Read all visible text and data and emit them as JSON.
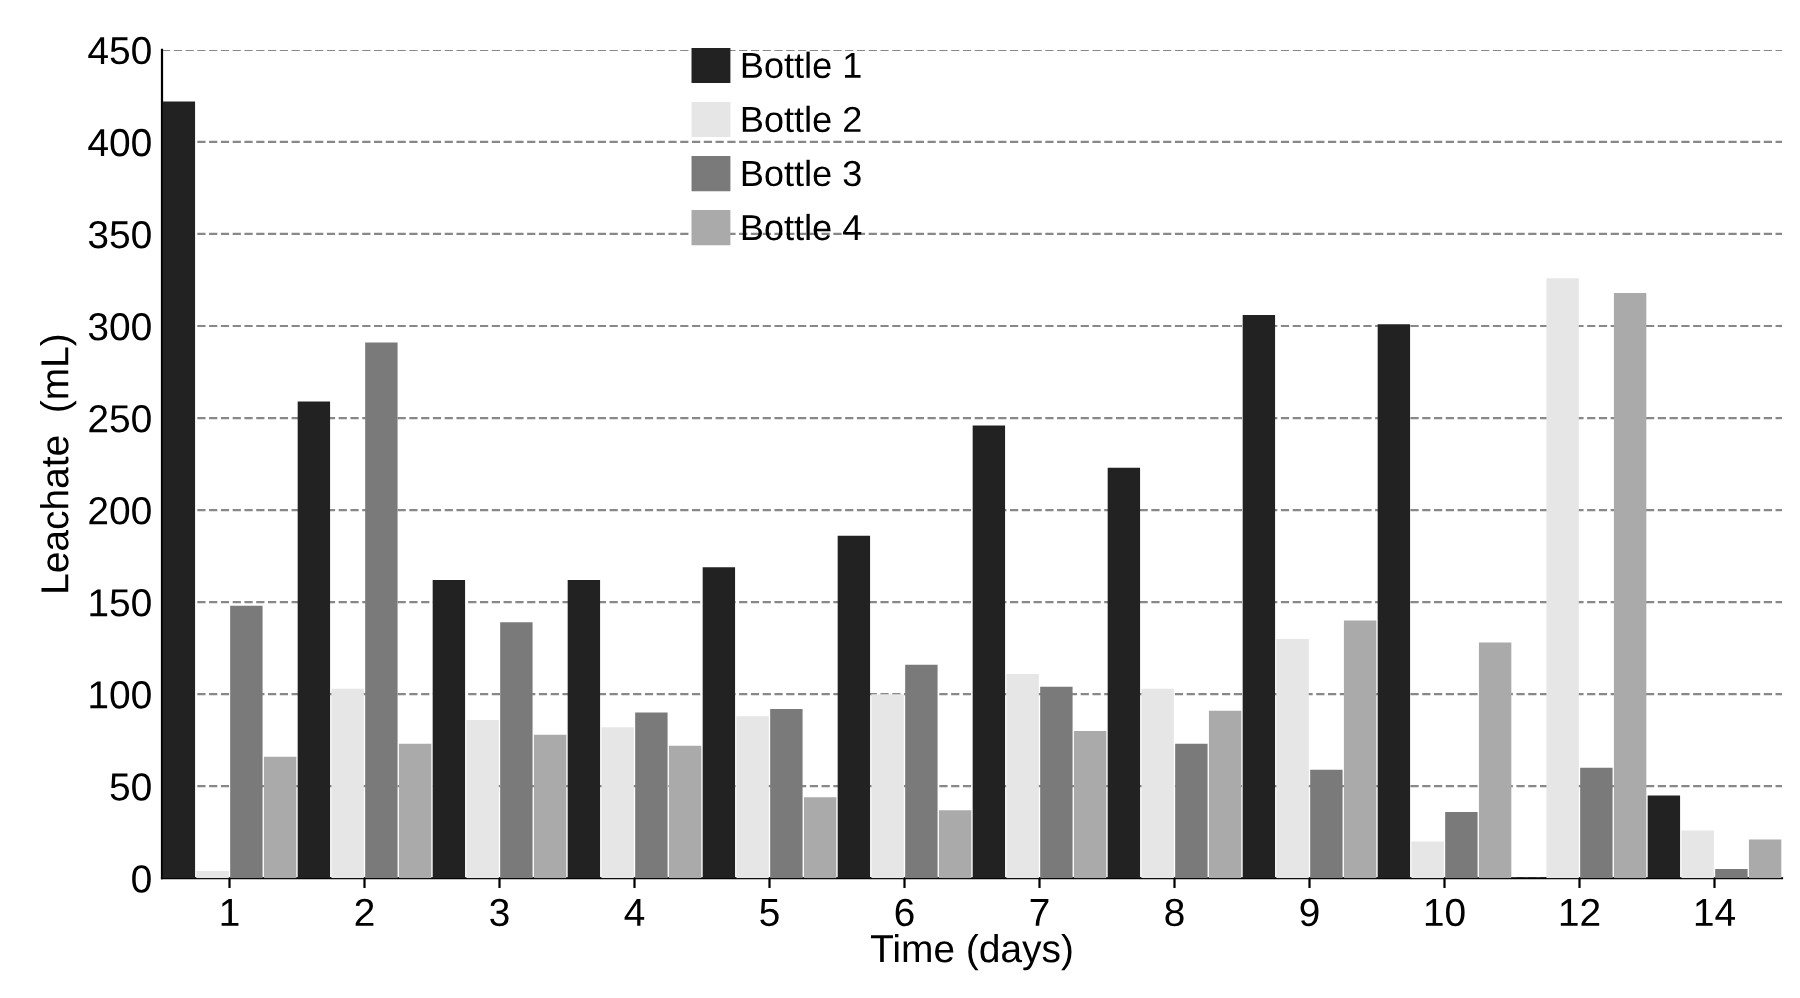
{
  "chart_data": {
    "type": "bar",
    "xlabel": "Time (days)",
    "ylabel": "Leachate  (mL)",
    "categories": [
      "1",
      "2",
      "3",
      "4",
      "5",
      "6",
      "7",
      "8",
      "9",
      "10",
      "12",
      "14"
    ],
    "series": [
      {
        "name": "Bottle 1",
        "color": "#222222",
        "values": [
          422,
          259,
          162,
          162,
          169,
          186,
          246,
          223,
          306,
          301,
          null,
          45
        ]
      },
      {
        "name": "Bottle 2",
        "color": "#e6e6e6",
        "values": [
          4,
          103,
          86,
          82,
          88,
          100,
          111,
          103,
          130,
          20,
          326,
          26
        ]
      },
      {
        "name": "Bottle 3",
        "color": "#7a7a7a",
        "values": [
          148,
          291,
          139,
          90,
          92,
          116,
          104,
          73,
          59,
          36,
          60,
          5
        ]
      },
      {
        "name": "Bottle 4",
        "color": "#aaaaaa",
        "values": [
          66,
          73,
          78,
          72,
          44,
          37,
          80,
          91,
          140,
          128,
          318,
          21
        ]
      }
    ],
    "ylim": [
      0,
      450
    ],
    "yticks": [
      0,
      50,
      100,
      150,
      200,
      250,
      300,
      350,
      400,
      450
    ],
    "grid": "y",
    "line_style": "dashed",
    "legend": "top"
  }
}
